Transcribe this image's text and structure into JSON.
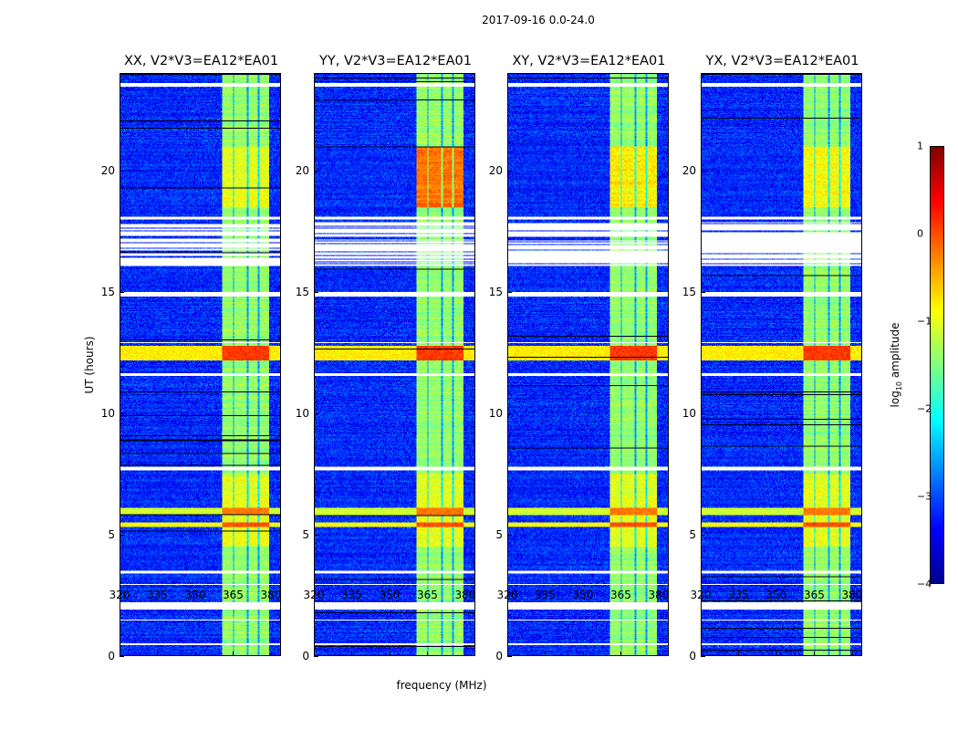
{
  "chart_data": {
    "type": "heatmap",
    "title": "2017-09-16 0.0-24.0",
    "xlabel": "frequency (MHz)",
    "ylabel": "UT (hours)",
    "xlim": [
      320,
      384
    ],
    "ylim": [
      0,
      24
    ],
    "xticks": [
      320,
      335,
      350,
      365,
      380
    ],
    "yticks": [
      0,
      5,
      10,
      15,
      20
    ],
    "colorbar": {
      "label_main": "log",
      "label_sub": "10",
      "label_rest": " amplitude",
      "range": [
        -4,
        1
      ],
      "ticks": [
        1,
        0,
        -1,
        -2,
        -3,
        -4
      ],
      "tick_labels": [
        "1",
        "0",
        "−1",
        "−2",
        "−3",
        "−4"
      ],
      "colormap": "jet"
    },
    "background_level": -3.2,
    "band": {
      "start_mhz": 360.5,
      "end_mhz": 379.5,
      "level": -1.4,
      "dark_channels_mhz": [
        365.2,
        370.8,
        375.2
      ]
    },
    "flagged_hours": [
      [
        23.5,
        23.65
      ],
      [
        18.0,
        18.12
      ],
      [
        16.1,
        17.9
      ],
      [
        14.8,
        15.0
      ],
      [
        12.9,
        12.95
      ],
      [
        11.55,
        11.65
      ],
      [
        7.65,
        7.78
      ],
      [
        3.4,
        3.5
      ],
      [
        2.9,
        2.95
      ],
      [
        1.9,
        2.2
      ],
      [
        1.45,
        1.5
      ],
      [
        0.45,
        0.5
      ]
    ],
    "rfi_rows": [
      {
        "hours": [
          12.2,
          12.8
        ],
        "level": -0.2
      },
      {
        "hours": [
          5.3,
          5.5
        ],
        "level": -0.3
      },
      {
        "hours": [
          5.8,
          6.1
        ],
        "level": -0.5
      }
    ],
    "panels": [
      {
        "title": "XX, V2*V3=EA12*EA01",
        "window_boost": 0.4
      },
      {
        "title": "YY, V2*V3=EA12*EA01",
        "window_boost": 1.2
      },
      {
        "title": "XY, V2*V3=EA12*EA01",
        "window_boost": 0.6
      },
      {
        "title": "YX, V2*V3=EA12*EA01",
        "window_boost": 0.5
      }
    ]
  }
}
